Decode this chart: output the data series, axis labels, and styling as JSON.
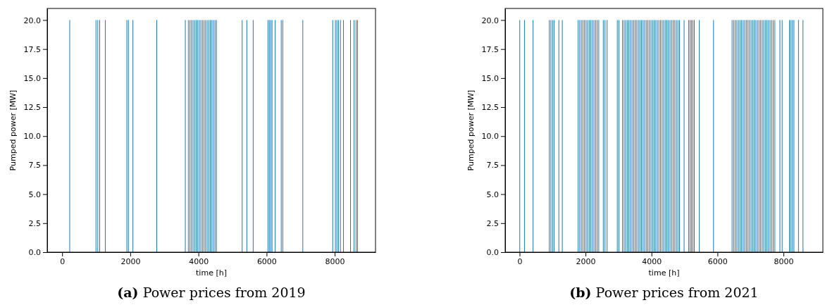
{
  "chart_data": [
    {
      "type": "bar",
      "title": "(a) Power prices from 2019",
      "xlabel": "time [h]",
      "ylabel": "Pumped power [MW]",
      "xlim": [
        -438,
        9197
      ],
      "ylim": [
        0,
        21
      ],
      "xticks": [
        0,
        2000,
        4000,
        6000,
        8000
      ],
      "yticks": [
        {
          "value": 0,
          "label": "0.0"
        },
        {
          "value": 2.5,
          "label": "2.5"
        },
        {
          "value": 5,
          "label": "5.0"
        },
        {
          "value": 7.5,
          "label": "7.5"
        },
        {
          "value": 10,
          "label": "10.0"
        },
        {
          "value": 12.5,
          "label": "12.5"
        },
        {
          "value": 15,
          "label": "15.0"
        },
        {
          "value": 17.5,
          "label": "17.5"
        },
        {
          "value": 20,
          "label": "20.0"
        }
      ],
      "series": [
        {
          "color": "#1f77b4",
          "x": [
            223,
            993,
            1047,
            1102,
            1267,
            1900,
            1945,
            2077,
            2777,
            3615,
            3704,
            3750,
            3796,
            3842,
            3888,
            3934,
            3980,
            4026,
            4072,
            4118,
            4164,
            4210,
            4256,
            4302,
            4348,
            4394,
            4440,
            4486,
            4528,
            5284,
            5421,
            5607,
            6040,
            6080,
            6120,
            6160,
            6252,
            6430,
            6475,
            7063,
            7941,
            8020,
            8065,
            8110,
            8168,
            8257,
            8463,
            8566,
            8627,
            8669
          ],
          "values": [
            20,
            20,
            20,
            20,
            20,
            20,
            20,
            20,
            20,
            20,
            20,
            20,
            20,
            20,
            20,
            20,
            20,
            20,
            20,
            20,
            20,
            20,
            20,
            20,
            20,
            20,
            20,
            20,
            20,
            20,
            20,
            20,
            20,
            20,
            20,
            20,
            20,
            20,
            20,
            20,
            20,
            20,
            20,
            20,
            20,
            20,
            20,
            20,
            20,
            20
          ]
        }
      ]
    },
    {
      "type": "bar",
      "title": "(b) Power prices from 2021",
      "xlabel": "time [h]",
      "ylabel": "Pumped power [MW]",
      "xlim": [
        -438,
        9197
      ],
      "ylim": [
        0,
        21
      ],
      "xticks": [
        0,
        2000,
        4000,
        6000,
        8000
      ],
      "yticks": [
        {
          "value": 0,
          "label": "0.0"
        },
        {
          "value": 2.5,
          "label": "2.5"
        },
        {
          "value": 5,
          "label": "5.0"
        },
        {
          "value": 7.5,
          "label": "7.5"
        },
        {
          "value": 10,
          "label": "10.0"
        },
        {
          "value": 12.5,
          "label": "12.5"
        },
        {
          "value": 15,
          "label": "15.0"
        },
        {
          "value": 17.5,
          "label": "17.5"
        },
        {
          "value": 20,
          "label": "20.0"
        }
      ],
      "series": [
        {
          "color": "#1f77b4",
          "x": [
            5,
            148,
            408,
            902,
            950,
            1000,
            1045,
            1191,
            1294,
            1776,
            1824,
            1872,
            1920,
            1968,
            2016,
            2064,
            2112,
            2160,
            2208,
            2256,
            2304,
            2352,
            2400,
            2538,
            2590,
            2654,
            2963,
            3012,
            3121,
            3169,
            3217,
            3265,
            3313,
            3361,
            3409,
            3457,
            3505,
            3553,
            3601,
            3649,
            3697,
            3745,
            3793,
            3841,
            3889,
            3937,
            3985,
            4033,
            4081,
            4129,
            4177,
            4225,
            4273,
            4321,
            4369,
            4417,
            4465,
            4513,
            4561,
            4609,
            4657,
            4705,
            4753,
            4801,
            4849,
            4989,
            5126,
            5169,
            5212,
            5255,
            5298,
            5449,
            5881,
            6444,
            6492,
            6540,
            6588,
            6636,
            6684,
            6732,
            6780,
            6828,
            6876,
            6924,
            6972,
            7020,
            7068,
            7116,
            7164,
            7212,
            7260,
            7308,
            7356,
            7404,
            7452,
            7500,
            7548,
            7596,
            7644,
            7692,
            7740,
            7894,
            7962,
            8182,
            8228,
            8274,
            8319,
            8457,
            8594
          ],
          "values": [
            20,
            20,
            20,
            20,
            20,
            20,
            20,
            20,
            20,
            20,
            20,
            20,
            20,
            20,
            20,
            20,
            20,
            20,
            20,
            20,
            20,
            20,
            20,
            20,
            20,
            20,
            20,
            20,
            20,
            20,
            20,
            20,
            20,
            20,
            20,
            20,
            20,
            20,
            20,
            20,
            20,
            20,
            20,
            20,
            20,
            20,
            20,
            20,
            20,
            20,
            20,
            20,
            20,
            20,
            20,
            20,
            20,
            20,
            20,
            20,
            20,
            20,
            20,
            20,
            20,
            20,
            20,
            20,
            20,
            20,
            20,
            20,
            20,
            20,
            20,
            20,
            20,
            20,
            20,
            20,
            20,
            20,
            20,
            20,
            20,
            20,
            20,
            20,
            20,
            20,
            20,
            20,
            20,
            20,
            20,
            20,
            20,
            20,
            20,
            20,
            20,
            20,
            20,
            20,
            20,
            20,
            20,
            20,
            20
          ]
        }
      ]
    }
  ]
}
